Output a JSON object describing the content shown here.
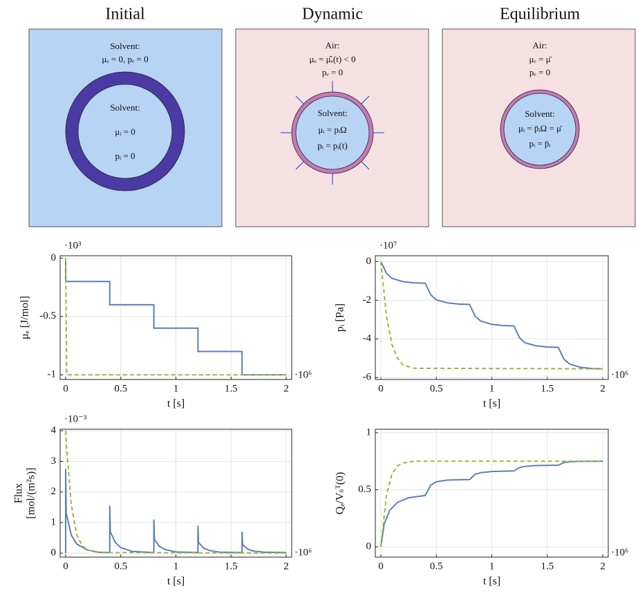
{
  "panels": [
    {
      "title": "Initial",
      "outer_text": [
        "Solvent:",
        "μₑ = 0, pₑ = 0"
      ],
      "inner_text": [
        "Solvent:",
        "μᵢ = 0",
        "pᵢ = 0"
      ]
    },
    {
      "title": "Dynamic",
      "outer_text": [
        "Air:",
        "μₑ = μ̂ₑ(t) < 0",
        "pₑ = 0"
      ],
      "inner_text": [
        "Solvent:",
        "μᵢ = pᵢΩ",
        "pᵢ = pᵢ(t)"
      ]
    },
    {
      "title": "Equilibrium",
      "outer_text": [
        "Air:",
        "μₑ = μ̄",
        "pₑ = 0"
      ],
      "inner_text": [
        "Solvent:",
        "μᵢ = p̄ᵢΩ = μ̄",
        "pᵢ = p̄ᵢ"
      ]
    }
  ],
  "chart_data": [
    {
      "type": "line",
      "ylabel": [
        "μₑ [J/mol]"
      ],
      "xlabel": "t  [s]",
      "y_scale_label": "·10³",
      "x_scale_label": "·10⁶",
      "xlim": [
        -0.05,
        2.05
      ],
      "ylim": [
        -1.04,
        0.02
      ],
      "xticks": [
        0,
        0.5,
        1,
        1.5,
        2
      ],
      "yticks": [
        0,
        -0.5,
        -1
      ],
      "grid": true,
      "series": [
        {
          "color": "#5b7fb8",
          "dashed": false,
          "x": [
            0,
            0,
            0.4,
            0.4,
            0.8,
            0.8,
            1.2,
            1.2,
            1.6,
            1.6,
            2
          ],
          "values": [
            0,
            -0.2,
            -0.2,
            -0.4,
            -0.4,
            -0.6,
            -0.6,
            -0.8,
            -0.8,
            -1,
            -1
          ]
        },
        {
          "color": "#9ab83a",
          "dashed": true,
          "x": [
            0,
            0.01,
            2
          ],
          "values": [
            0,
            -1,
            -1
          ]
        }
      ]
    },
    {
      "type": "line",
      "ylabel": [
        "pᵢ [Pa]"
      ],
      "xlabel": "t  [s]",
      "y_scale_label": "·10⁷",
      "x_scale_label": "·10⁶",
      "xlim": [
        -0.05,
        2.05
      ],
      "ylim": [
        -6.1,
        0.3
      ],
      "xticks": [
        0,
        0.5,
        1,
        1.5,
        2
      ],
      "yticks": [
        0,
        -2,
        -4,
        -6
      ],
      "grid": true,
      "series": [
        {
          "color": "#5b7fb8",
          "dashed": false,
          "x": [
            0,
            0.05,
            0.1,
            0.2,
            0.3,
            0.4,
            0.45,
            0.5,
            0.6,
            0.7,
            0.8,
            0.85,
            0.9,
            1.0,
            1.1,
            1.2,
            1.25,
            1.3,
            1.4,
            1.5,
            1.6,
            1.65,
            1.7,
            1.8,
            1.9,
            2.0
          ],
          "values": [
            0,
            -0.6,
            -0.87,
            -1.04,
            -1.1,
            -1.12,
            -1.72,
            -1.98,
            -2.14,
            -2.2,
            -2.22,
            -2.83,
            -3.08,
            -3.25,
            -3.31,
            -3.33,
            -3.94,
            -4.2,
            -4.36,
            -4.42,
            -4.44,
            -5.05,
            -5.3,
            -5.47,
            -5.53,
            -5.55
          ]
        },
        {
          "color": "#9ab83a",
          "dashed": true,
          "x": [
            0,
            0.05,
            0.1,
            0.15,
            0.2,
            0.3,
            2
          ],
          "values": [
            0,
            -2.8,
            -4.3,
            -5.0,
            -5.35,
            -5.52,
            -5.55
          ]
        }
      ]
    },
    {
      "type": "line",
      "ylabel": [
        "Flux",
        "[mol/(m²s)]"
      ],
      "xlabel": "t  [s]",
      "y_scale_label": "·10⁻³",
      "x_scale_label": "·10⁶",
      "xlim": [
        -0.05,
        2.05
      ],
      "ylim": [
        -0.13,
        4.05
      ],
      "xticks": [
        0,
        0.5,
        1,
        1.5,
        2
      ],
      "yticks": [
        0,
        1,
        2,
        3,
        4
      ],
      "grid": true,
      "series": [
        {
          "color": "#5b7fb8",
          "dashed": false,
          "x": [
            0,
            0,
            0.005,
            0.05,
            0.1,
            0.2,
            0.3,
            0.4,
            0.4,
            0.405,
            0.45,
            0.5,
            0.6,
            0.8,
            0.8,
            0.805,
            0.85,
            0.9,
            1.0,
            1.2,
            1.2,
            1.205,
            1.25,
            1.3,
            1.4,
            1.6,
            1.6,
            1.605,
            1.65,
            1.7,
            1.8,
            2.0
          ],
          "values": [
            0,
            2.75,
            1.3,
            0.6,
            0.3,
            0.1,
            0.03,
            0.02,
            1.55,
            0.7,
            0.35,
            0.18,
            0.06,
            0.02,
            1.1,
            0.45,
            0.22,
            0.12,
            0.04,
            0.02,
            0.9,
            0.35,
            0.17,
            0.09,
            0.03,
            0.02,
            0.7,
            0.28,
            0.13,
            0.07,
            0.03,
            0.02
          ]
        },
        {
          "color": "#9ab83a",
          "dashed": true,
          "x": [
            0,
            0.005,
            0.05,
            0.1,
            0.15,
            0.2,
            0.3,
            2
          ],
          "values": [
            4,
            3.6,
            1.6,
            0.6,
            0.25,
            0.1,
            0.02,
            0
          ]
        }
      ]
    },
    {
      "type": "line",
      "ylabel": [
        "Qₑ/Vₛᵀ(0)"
      ],
      "xlabel": "t  [s]",
      "x_scale_label": "·10⁶",
      "xlim": [
        -0.05,
        2.05
      ],
      "ylim": [
        -0.09,
        1.03
      ],
      "xticks": [
        0,
        0.5,
        1,
        1.5,
        2
      ],
      "yticks": [
        0,
        0.5,
        1
      ],
      "grid": true,
      "series": [
        {
          "color": "#5b7fb8",
          "dashed": false,
          "x": [
            0,
            0.03,
            0.08,
            0.15,
            0.25,
            0.4,
            0.45,
            0.5,
            0.6,
            0.8,
            0.85,
            0.9,
            1.0,
            1.2,
            1.25,
            1.3,
            1.4,
            1.6,
            1.65,
            1.7,
            1.8,
            2.0
          ],
          "values": [
            0,
            0.2,
            0.32,
            0.39,
            0.43,
            0.45,
            0.54,
            0.57,
            0.585,
            0.59,
            0.635,
            0.65,
            0.66,
            0.665,
            0.695,
            0.705,
            0.712,
            0.715,
            0.738,
            0.745,
            0.749,
            0.75
          ]
        },
        {
          "color": "#9ab83a",
          "dashed": true,
          "x": [
            0,
            0.05,
            0.1,
            0.15,
            0.2,
            0.3,
            2
          ],
          "values": [
            0,
            0.45,
            0.64,
            0.71,
            0.735,
            0.75,
            0.75
          ]
        }
      ]
    }
  ]
}
